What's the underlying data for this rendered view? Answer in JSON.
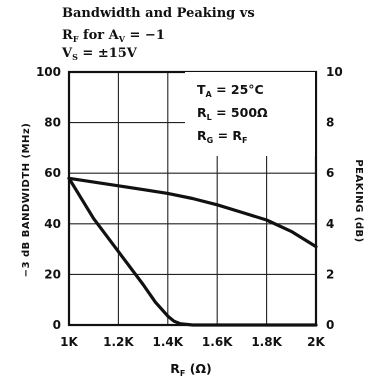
{
  "chart_data": {
    "type": "line",
    "title_lines": [
      "Bandwidth and Peaking vs",
      "R_F for A_V = −1",
      "V_S = ±15V"
    ],
    "title": {
      "line1": "Bandwidth and Peaking vs",
      "line2_main": "R",
      "line2_sub": "F",
      "line2_rest": " for A",
      "line2_sub2": "V",
      "line2_end": " = −1",
      "line3_main": "V",
      "line3_sub": "S",
      "line3_rest": " = ±15V"
    },
    "xlabel": {
      "main": "R",
      "sub": "F",
      "rest": " (Ω)"
    },
    "ylabel_left": "−3 dB BANDWIDTH (MHz)",
    "ylabel_right": "PEAKING (dB)",
    "x_ticks": [
      "1K",
      "1.2K",
      "1.4K",
      "1.6K",
      "1.8K",
      "2K"
    ],
    "y_left_ticks": [
      "0",
      "20",
      "40",
      "60",
      "80",
      "100"
    ],
    "y_right_ticks": [
      "0",
      "2",
      "4",
      "6",
      "8",
      "10"
    ],
    "xlim": [
      1000,
      2000
    ],
    "ylim_left": [
      0,
      100
    ],
    "ylim_right": [
      0,
      10
    ],
    "grid": true,
    "annotation": {
      "ta_main": "T",
      "ta_sub": "A",
      "ta_rest": " = 25°C",
      "rl_main": "R",
      "rl_sub": "L",
      "rl_rest": " = 500Ω",
      "rg_main": "R",
      "rg_sub": "G",
      "rg_mid": " = R",
      "rg_sub2": "F"
    },
    "series": [
      {
        "axis": "left",
        "x": [
          1000,
          1100,
          1200,
          1300,
          1400,
          1500,
          1600,
          1700,
          1800,
          1900,
          2000
        ],
        "y": [
          58,
          56.5,
          55,
          53.5,
          52,
          50,
          47.5,
          44.5,
          41.5,
          37,
          31
        ]
      },
      {
        "axis": "right",
        "x": [
          1000,
          1100,
          1200,
          1300,
          1350,
          1400,
          1425,
          1450,
          1500,
          1600,
          1800,
          2000
        ],
        "y": [
          5.8,
          4.2,
          2.9,
          1.6,
          0.9,
          0.35,
          0.15,
          0.05,
          0,
          0,
          0,
          0
        ]
      }
    ]
  }
}
